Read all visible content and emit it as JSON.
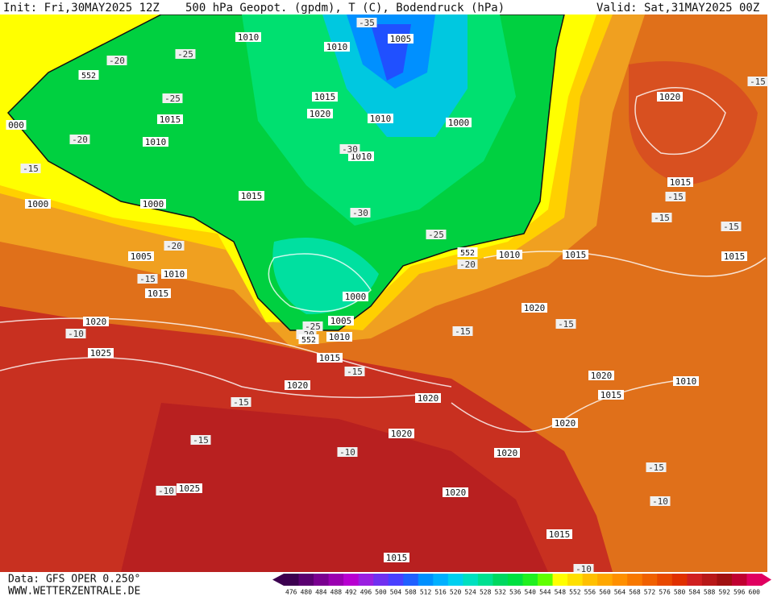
{
  "header": {
    "init": "Init: Fri,30MAY2025 12Z",
    "title": "500 hPa Geopot. (gpdm), T (C), Bodendruck (hPa)",
    "valid": "Valid: Sat,31MAY2025 00Z"
  },
  "map": {
    "isobar_labels": [
      "1010",
      "1010",
      "1005",
      "1015",
      "1020",
      "1010",
      "1000",
      "1015",
      "1010",
      "1010",
      "1015",
      "1000",
      "1000",
      "1005",
      "1010",
      "1015",
      "1000",
      "1005",
      "1010",
      "1020",
      "1025",
      "1015",
      "1020",
      "1020",
      "1020",
      "1020",
      "1020",
      "1025",
      "1015",
      "1015",
      "1020",
      "1015",
      "1010",
      "1015",
      "1020",
      "1020",
      "1015",
      "1010",
      "1020",
      "1015",
      "000"
    ],
    "temperature_labels": [
      "-35",
      "-25",
      "-20",
      "-25",
      "-20",
      "-15",
      "-30",
      "-30",
      "-25",
      "-20",
      "-20",
      "-15",
      "-10",
      "-25",
      "-20",
      "-15",
      "-15",
      "-15",
      "-15",
      "-10",
      "-10",
      "-15",
      "-15",
      "-10",
      "-15",
      "-15",
      "-15",
      "-15",
      "-10"
    ],
    "geopotential_labels": [
      "552",
      "552",
      "552"
    ]
  },
  "footer": {
    "data_source": "Data: GFS OPER 0.250°",
    "website": "WWW.WETTERZENTRALE.DE"
  },
  "colorbar": {
    "labels": [
      476,
      480,
      484,
      488,
      492,
      496,
      500,
      504,
      508,
      512,
      516,
      520,
      524,
      528,
      532,
      536,
      540,
      544,
      548,
      552,
      556,
      560,
      564,
      568,
      572,
      576,
      580,
      584,
      588,
      592,
      596,
      600
    ],
    "colors": [
      "#3c0050",
      "#5a0070",
      "#7a0090",
      "#9a00b0",
      "#b800d0",
      "#9a20e0",
      "#7030f0",
      "#4a40ff",
      "#2060ff",
      "#0090ff",
      "#00b0ff",
      "#00d0f0",
      "#00e0c0",
      "#00e090",
      "#00d860",
      "#00e040",
      "#20f020",
      "#60ff00",
      "#ffff00",
      "#ffe000",
      "#ffc000",
      "#ffa800",
      "#ff9000",
      "#f87800",
      "#f06000",
      "#e84800",
      "#e03000",
      "#d02020",
      "#b81818",
      "#a01010",
      "#c00030",
      "#e00060"
    ]
  }
}
